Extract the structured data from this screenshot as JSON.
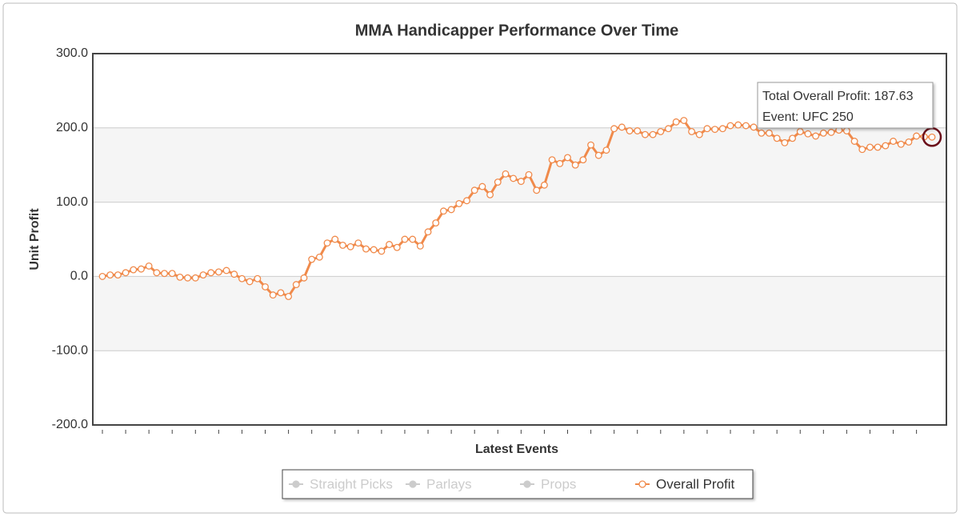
{
  "chart_data": {
    "type": "line",
    "title": "MMA Handicapper Performance Over Time",
    "x_label": "Latest Events",
    "y_label": "Unit Profit",
    "ylim": [
      -200,
      300
    ],
    "yticks": [
      {
        "value": 300,
        "label": "300.0"
      },
      {
        "value": 200,
        "label": "200.0"
      },
      {
        "value": 100,
        "label": "100.0"
      },
      {
        "value": 0,
        "label": "0.0"
      },
      {
        "value": -100,
        "label": "-100.0"
      },
      {
        "value": -200,
        "label": "-200.0"
      }
    ],
    "grid": true,
    "alternate_bands": true,
    "xtick_every": 3,
    "series": [
      {
        "name": "Straight Picks",
        "visible": false
      },
      {
        "name": "Parlays",
        "visible": false
      },
      {
        "name": "Props",
        "visible": false
      },
      {
        "name": "Overall Profit",
        "visible": true,
        "color": "#f08a4b",
        "values": [
          0,
          2,
          2,
          5,
          9,
          10,
          14,
          5,
          4,
          4,
          -1,
          -2,
          -2,
          2,
          5,
          6,
          8,
          3,
          -3,
          -7,
          -3,
          -14,
          -25,
          -22,
          -27,
          -11,
          -2,
          23,
          26,
          45,
          50,
          42,
          40,
          45,
          37,
          36,
          34,
          43,
          39,
          50,
          50,
          41,
          60,
          72,
          88,
          90,
          98,
          102,
          116,
          121,
          110,
          127,
          138,
          132,
          128,
          137,
          116,
          123,
          157,
          152,
          160,
          150,
          157,
          177,
          163,
          170,
          199,
          201,
          196,
          196,
          191,
          191,
          195,
          199,
          208,
          210,
          195,
          191,
          199,
          198,
          199,
          203,
          204,
          203,
          201,
          193,
          193,
          186,
          180,
          186,
          195,
          192,
          189,
          193,
          194,
          197,
          196,
          182,
          171,
          174,
          174,
          176,
          182,
          178,
          181,
          189,
          188,
          187.63
        ]
      }
    ],
    "tooltip": {
      "series": 3,
      "index": 107,
      "lines": [
        "Total Overall Profit: 187.63",
        "Event: UFC 250"
      ]
    }
  }
}
